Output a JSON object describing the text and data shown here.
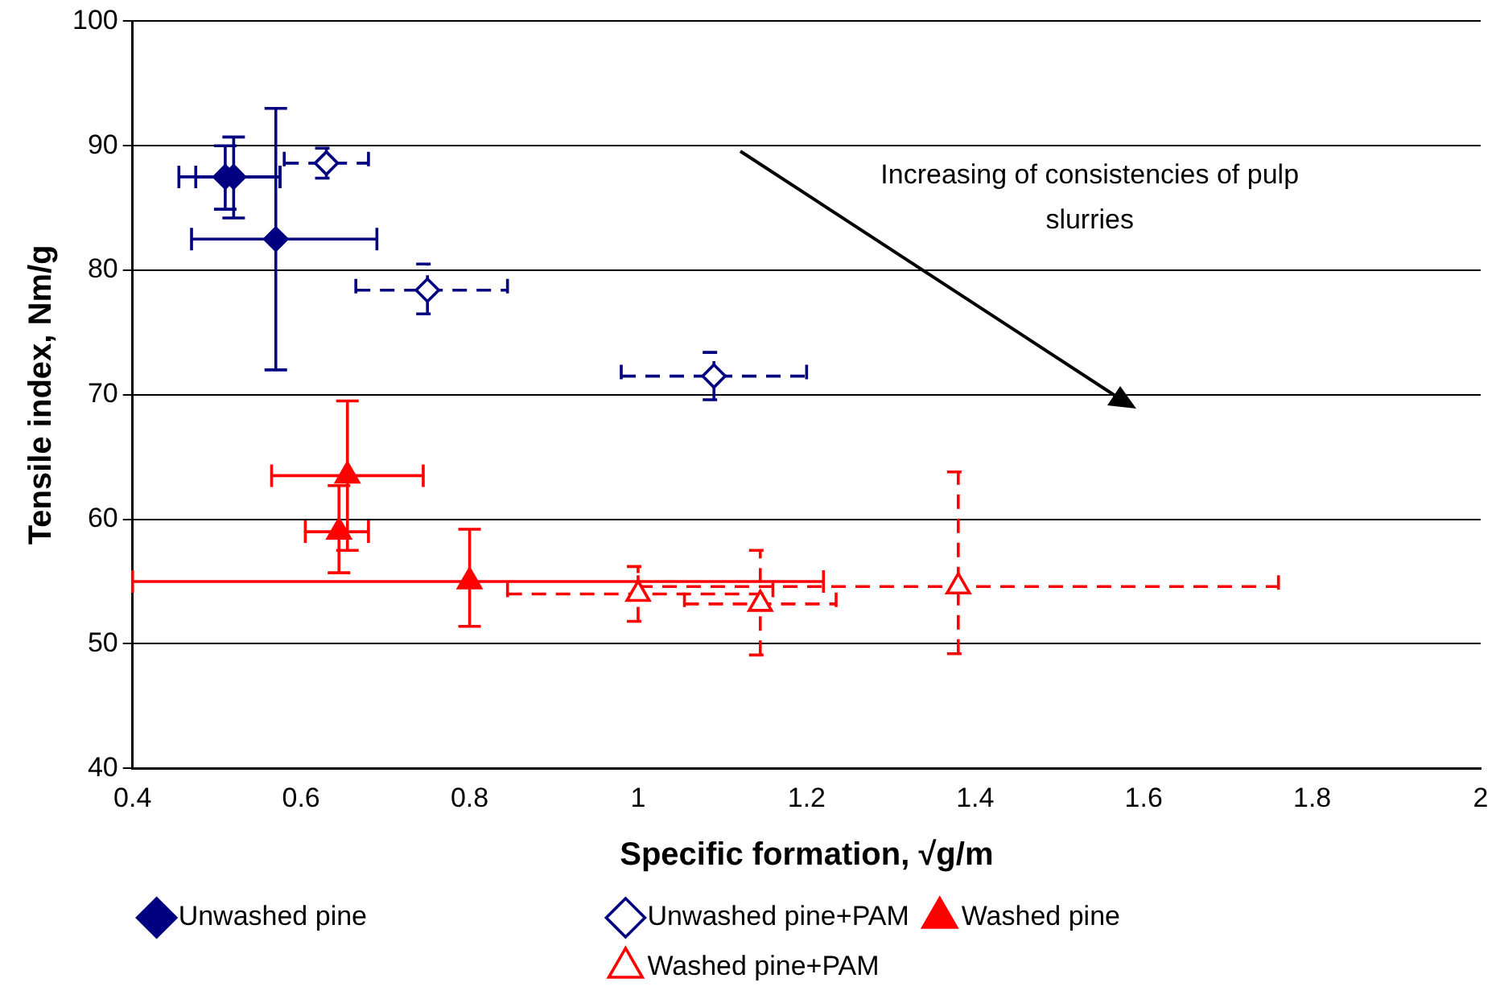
{
  "chart_data": {
    "type": "scatter",
    "xlabel": "Specific formation, √g/m",
    "ylabel": "Tensile index, Nm/g",
    "xlim": [
      0.4,
      2
    ],
    "xticks": [
      0.4,
      0.6,
      0.8,
      1,
      1.2,
      1.4,
      1.6,
      1.8,
      2
    ],
    "ylim": [
      40,
      100
    ],
    "yticks": [
      40,
      50,
      60,
      70,
      80,
      90,
      100
    ],
    "grid": "y",
    "legend": "bottom",
    "annotations": [
      "Increasing of consistencies of pulp slurries"
    ],
    "series": [
      {
        "name": "Unwashed pine",
        "color": "#000080",
        "marker": "diamond",
        "line_style": "solid",
        "x": [
          0.51,
          0.52,
          0.57
        ],
        "values": [
          87.5,
          87.5,
          82.5
        ],
        "errors": [
          [
            84.9,
            90.0
          ],
          [
            84.2,
            90.7
          ],
          [
            72,
            93
          ]
        ],
        "xerrors": [
          [
            0.455,
            0.575
          ],
          [
            0.475,
            0.575
          ],
          [
            0.47,
            0.69
          ]
        ]
      },
      {
        "name": "Unwashed pine+PAM",
        "color": "#000080",
        "marker": "diamond",
        "line_style": "dashed",
        "x": [
          0.63,
          0.75,
          1.09
        ],
        "values": [
          88.6,
          78.4,
          71.5
        ],
        "errors": [
          [
            87.4,
            89.8
          ],
          [
            76.5,
            80.5
          ],
          [
            69.6,
            73.4
          ]
        ],
        "xerrors": [
          [
            0.58,
            0.68
          ],
          [
            0.665,
            0.845
          ],
          [
            0.98,
            1.2
          ]
        ]
      },
      {
        "name": "Washed pine",
        "color": "#ff0000",
        "marker": "triangle",
        "line_style": "solid",
        "x": [
          0.655,
          0.645,
          0.8
        ],
        "values": [
          63.5,
          59,
          55
        ],
        "errors": [
          [
            57.5,
            69.5
          ],
          [
            55.7,
            62.7
          ],
          [
            51.4,
            59.2
          ]
        ],
        "xerrors": [
          [
            0.565,
            0.745
          ],
          [
            0.605,
            0.68
          ],
          [
            0.4,
            1.22
          ]
        ]
      },
      {
        "name": "Washed pine+PAM",
        "color": "#ff0000",
        "marker": "triangle",
        "line_style": "dashed",
        "x": [
          1.0,
          1.145,
          1.38
        ],
        "values": [
          54,
          53.2,
          54.6
        ],
        "errors": [
          [
            51.8,
            56.2
          ],
          [
            49.1,
            57.5
          ],
          [
            49.2,
            63.8
          ]
        ],
        "xerrors": [
          [
            0.845,
            1.16
          ],
          [
            1.055,
            1.235
          ],
          [
            1.0,
            1.76
          ]
        ]
      }
    ]
  }
}
